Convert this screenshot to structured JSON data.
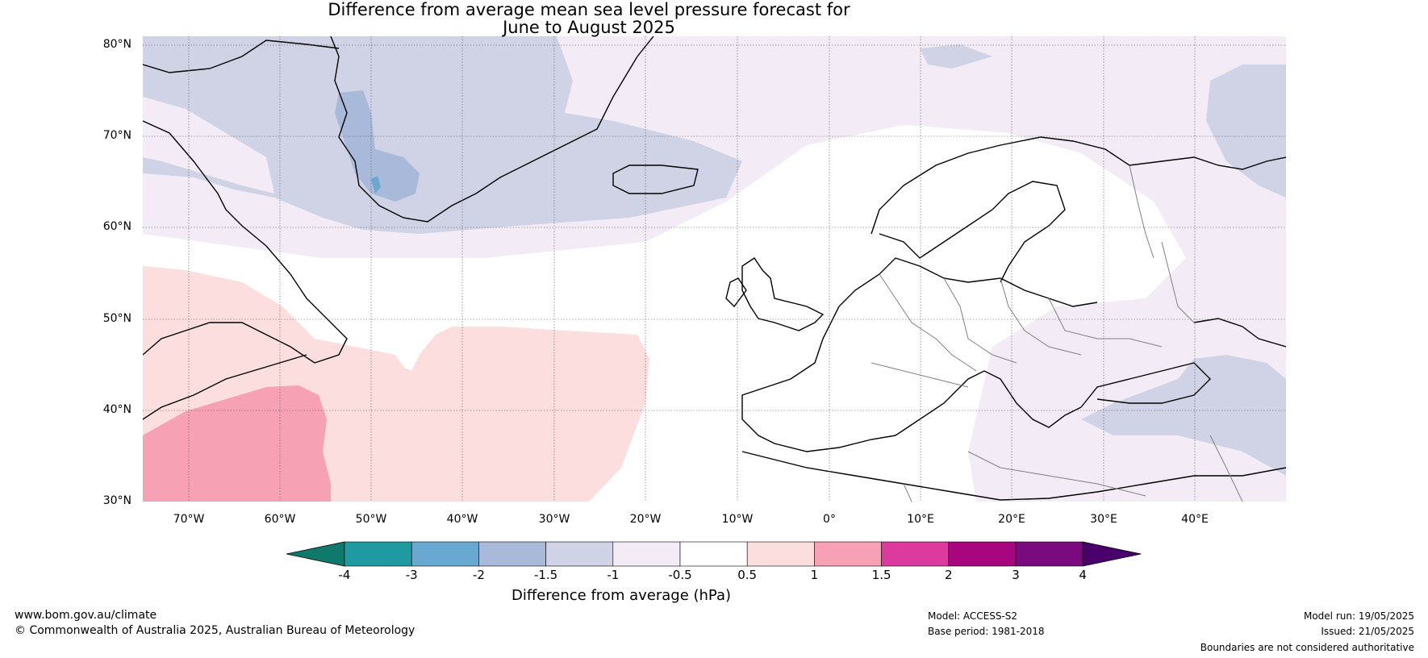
{
  "title_line1": "Difference from average mean sea level pressure forecast for",
  "title_line2": "June to August 2025",
  "lat_labels": [
    "80°N",
    "70°N",
    "60°N",
    "50°N",
    "40°N",
    "30°N"
  ],
  "lon_labels": [
    "70°W",
    "60°W",
    "50°W",
    "40°W",
    "30°W",
    "20°W",
    "10°W",
    "0°",
    "10°E",
    "20°E",
    "30°E",
    "40°E"
  ],
  "colorbar": {
    "label": "Difference from average (hPa)",
    "ticks": [
      "-4",
      "-3",
      "-2",
      "-1.5",
      "-1",
      "-0.5",
      "0.5",
      "1",
      "1.5",
      "2",
      "3",
      "4"
    ],
    "colors": [
      "#0f7a6c",
      "#1f9aa0",
      "#69a9d1",
      "#a9b9d9",
      "#d0d2e6",
      "#f3ecf6",
      "#ffffff",
      "#fbdedd",
      "#f7a1b5",
      "#dc3a9c",
      "#a8067f",
      "#7a0b7f",
      "#4a006a"
    ]
  },
  "footer": {
    "website": "www.bom.gov.au/climate",
    "copyright": "© Commonwealth of Australia 2025, Australian Bureau of Meteorology",
    "model": "Model: ACCESS-S2",
    "base_period": "Base period: 1981-2018",
    "model_run": "Model run: 19/05/2025",
    "issued": "Issued: 21/05/2025",
    "disclaimer": "Boundaries are not considered authoritative"
  }
}
